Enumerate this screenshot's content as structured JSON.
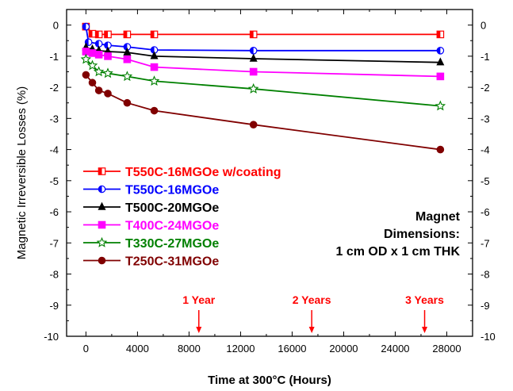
{
  "chart_data": {
    "type": "line",
    "xlabel": "Time at 300°C (Hours)",
    "ylabel": "Magnetic Irreversible Losses (%)",
    "xlim": [
      -1500,
      30000
    ],
    "ylim": [
      -10,
      0.5
    ],
    "x_ticks": [
      0,
      4000,
      8000,
      12000,
      16000,
      20000,
      24000,
      28000
    ],
    "y_ticks": [
      0,
      -1,
      -2,
      -3,
      -4,
      -5,
      -6,
      -7,
      -8,
      -9,
      -10
    ],
    "legend_position": "left-middle",
    "series": [
      {
        "name": "T550C-16MGOe w/coating",
        "color": "#ff0000",
        "marker": "square-half",
        "points": [
          [
            0,
            -0.05
          ],
          [
            500,
            -0.28
          ],
          [
            1000,
            -0.3
          ],
          [
            1700,
            -0.3
          ],
          [
            3200,
            -0.3
          ],
          [
            5300,
            -0.3
          ],
          [
            13000,
            -0.3
          ],
          [
            27500,
            -0.3
          ]
        ]
      },
      {
        "name": "T550C-16MGOe",
        "color": "#0000ff",
        "marker": "circle-half",
        "points": [
          [
            0,
            -0.05
          ],
          [
            200,
            -0.55
          ],
          [
            1000,
            -0.6
          ],
          [
            1700,
            -0.65
          ],
          [
            3200,
            -0.7
          ],
          [
            5300,
            -0.8
          ],
          [
            13000,
            -0.82
          ],
          [
            27500,
            -0.82
          ]
        ]
      },
      {
        "name": "T500C-20MGOe",
        "color": "#000000",
        "marker": "triangle",
        "points": [
          [
            0,
            -0.72
          ],
          [
            500,
            -0.78
          ],
          [
            1000,
            -0.82
          ],
          [
            1700,
            -0.85
          ],
          [
            3200,
            -0.88
          ],
          [
            5300,
            -1.0
          ],
          [
            13000,
            -1.08
          ],
          [
            27500,
            -1.2
          ]
        ]
      },
      {
        "name": "T400C-24MGOe",
        "color": "#ff00ff",
        "marker": "square",
        "points": [
          [
            0,
            -0.85
          ],
          [
            500,
            -0.9
          ],
          [
            1000,
            -0.95
          ],
          [
            1700,
            -1.0
          ],
          [
            3200,
            -1.1
          ],
          [
            5300,
            -1.35
          ],
          [
            13000,
            -1.5
          ],
          [
            27500,
            -1.65
          ]
        ]
      },
      {
        "name": "T330C-27MGOe",
        "color": "#008000",
        "marker": "star",
        "points": [
          [
            0,
            -1.1
          ],
          [
            500,
            -1.3
          ],
          [
            1000,
            -1.5
          ],
          [
            1700,
            -1.55
          ],
          [
            3200,
            -1.65
          ],
          [
            5300,
            -1.8
          ],
          [
            13000,
            -2.05
          ],
          [
            27500,
            -2.6
          ]
        ]
      },
      {
        "name": "T250C-31MGOe",
        "color": "#800000",
        "marker": "circle",
        "points": [
          [
            0,
            -1.6
          ],
          [
            500,
            -1.85
          ],
          [
            1000,
            -2.1
          ],
          [
            1700,
            -2.2
          ],
          [
            3200,
            -2.5
          ],
          [
            5300,
            -2.75
          ],
          [
            13000,
            -3.2
          ],
          [
            27500,
            -4.0
          ]
        ]
      }
    ],
    "annotations": {
      "note_lines": [
        "Magnet",
        "Dimensions:",
        "1 cm OD x 1 cm THK"
      ],
      "year_markers": [
        {
          "label": "1 Year",
          "x": 8760
        },
        {
          "label": "2 Years",
          "x": 17520
        },
        {
          "label": "3 Years",
          "x": 26280
        }
      ]
    }
  }
}
